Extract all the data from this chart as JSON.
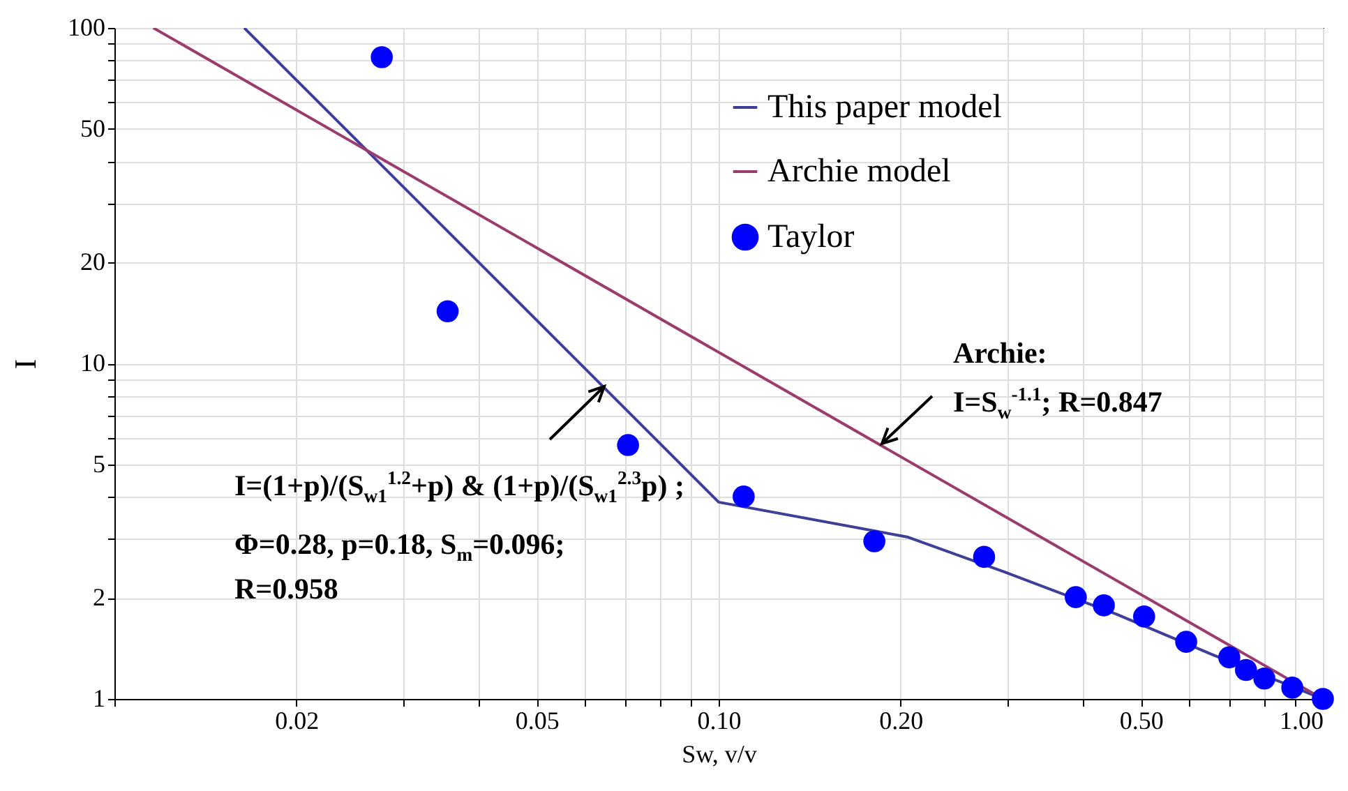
{
  "chart_data": {
    "type": "line",
    "xlabel": "Sw, v/v",
    "ylabel": "I",
    "log": "xy",
    "grid": true,
    "legend": "top right",
    "xlim": [
      0.01,
      1
    ],
    "ylim": [
      1,
      100
    ],
    "xticks": [
      {
        "value": 0.01,
        "label": null
      },
      {
        "value": 0.02,
        "label": "0.02"
      },
      {
        "value": 0.03,
        "label": null
      },
      {
        "value": 0.04,
        "label": null
      },
      {
        "value": 0.05,
        "label": "0.05"
      },
      {
        "value": 0.06,
        "label": null
      },
      {
        "value": 0.07,
        "label": null
      },
      {
        "value": 0.08,
        "label": null
      },
      {
        "value": 0.09,
        "label": null
      },
      {
        "value": 0.1,
        "label": "0.10"
      },
      {
        "value": 0.2,
        "label": "0.20"
      },
      {
        "value": 0.3,
        "label": null
      },
      {
        "value": 0.4,
        "label": null
      },
      {
        "value": 0.5,
        "label": "0.50"
      },
      {
        "value": 0.6,
        "label": null
      },
      {
        "value": 0.7,
        "label": null
      },
      {
        "value": 0.8,
        "label": null
      },
      {
        "value": 0.9,
        "label": null
      },
      {
        "value": 1,
        "label": "1.00"
      }
    ],
    "yticks": [
      1,
      2,
      {
        "value": 3,
        "label": null
      },
      {
        "value": 4,
        "label": null
      },
      5,
      {
        "value": 6,
        "label": null
      },
      {
        "value": 7,
        "label": null
      },
      {
        "value": 8,
        "label": null
      },
      {
        "value": 9,
        "label": null
      },
      10,
      20,
      {
        "value": 30,
        "label": null
      },
      {
        "value": 40,
        "label": null
      },
      50,
      {
        "value": 60,
        "label": null
      },
      {
        "value": 70,
        "label": null
      },
      {
        "value": 80,
        "label": null
      },
      {
        "value": 90,
        "label": null
      },
      100
    ],
    "series": [
      {
        "name": "This paper model",
        "marker": "none",
        "color": "#3f3f99",
        "x": [
          0.0164,
          0.1,
          0.205,
          0.297,
          0.455,
          0.66,
          1
        ],
        "values": [
          100,
          3.86,
          3.04,
          2.39,
          1.79,
          1.35,
          1
        ]
      },
      {
        "name": "Archie model",
        "marker": "none",
        "color": "#9b3c6e",
        "x": [
          0.0116,
          1
        ],
        "values": [
          100,
          1
        ]
      },
      {
        "name": "Taylor",
        "type": "scatter",
        "marker": "circle",
        "color": "#0000ff",
        "x": [
          0.0277,
          0.0356,
          0.0708,
          0.11,
          0.181,
          0.275,
          0.39,
          0.434,
          0.506,
          0.594,
          0.7,
          0.746,
          0.8,
          0.89,
          1
        ],
        "values": [
          81.8,
          14.3,
          5.71,
          4.01,
          2.95,
          2.65,
          2.01,
          1.9,
          1.76,
          1.48,
          1.33,
          1.22,
          1.15,
          1.08,
          1
        ]
      }
    ],
    "annotations": [
      {
        "text": "Archie:",
        "x": 0.186,
        "y": 5.77
      },
      "I=S$_{w}$$^{-1.1}$; R=0.847",
      {
        "text": "I=(1+p)/(S$_{w1}$$^{1.2}$+p) & (1+p)/(S$_{w1}$$^{2.3}$p) ;",
        "x": 0.0645,
        "y": 8.51
      },
      "Φ=0.28, p=0.18, S$_{m}$=0.096;",
      "R=0.958"
    ]
  }
}
